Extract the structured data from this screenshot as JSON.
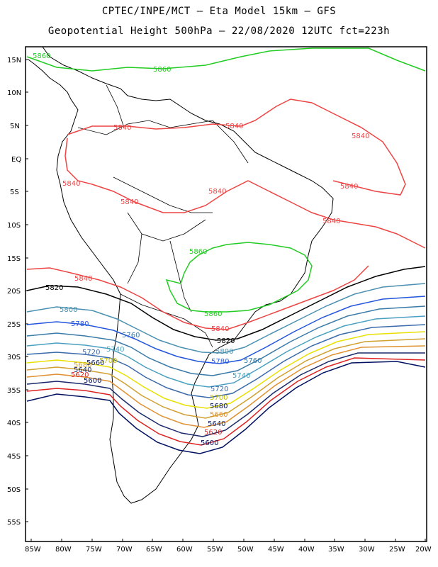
{
  "header": {
    "line1": "CPTEC/INPE/MCT –  Eta Model 15km – GFS",
    "line2": "Geopotential Height 500hPa – 22/08/2020 12UTC fct=223h"
  },
  "axes": {
    "lat_labels": [
      "15N",
      "10N",
      "5N",
      "EQ",
      "5S",
      "10S",
      "15S",
      "20S",
      "25S",
      "30S",
      "35S",
      "40S",
      "45S",
      "50S",
      "55S"
    ],
    "lon_labels": [
      "85W",
      "80W",
      "75W",
      "70W",
      "65W",
      "60W",
      "55W",
      "50W",
      "45W",
      "40W",
      "35W",
      "30W",
      "25W",
      "20W"
    ]
  },
  "contours": [
    {
      "value": "5860",
      "color": "#22cc22"
    },
    {
      "value": "5840",
      "color": "#ee4444"
    },
    {
      "value": "5820",
      "color": "#000000"
    },
    {
      "value": "5800",
      "color": "#4a90b0"
    },
    {
      "value": "5780",
      "color": "#2255dd"
    },
    {
      "value": "5760",
      "color": "#3a7aa8"
    },
    {
      "value": "5740",
      "color": "#4aa0c0"
    },
    {
      "value": "5720",
      "color": "#3a6aaa"
    },
    {
      "value": "5700",
      "color": "#e8e000"
    },
    {
      "value": "5680",
      "color": "#d0a030"
    },
    {
      "value": "5660",
      "color": "#e09030"
    },
    {
      "value": "5640",
      "color": "#1a2a6a"
    },
    {
      "value": "5620",
      "color": "#dd2222"
    },
    {
      "value": "5600",
      "color": "#001060"
    }
  ],
  "labels": {
    "l5860_top": "5860",
    "l5860_top2": "5860",
    "l5840_a": "5840",
    "l5840_b": "5840",
    "l5840_c": "5840",
    "l5840_d": "5840",
    "l5840_e": "5840",
    "l5840_f": "5840",
    "l5840_g": "5840",
    "l5840_h": "5840",
    "l5860_br": "5860",
    "l5860_br2": "5860",
    "l5840_s": "5840",
    "l5840_s2": "5840",
    "l5820_w": "5820",
    "l5820_e": "5820",
    "l5800_w": "5800",
    "l5800_e": "5800",
    "l5780_w": "5780",
    "l5780_e": "5780",
    "l5760_w": "5760",
    "l5760_e": "5760",
    "l5740_w": "5740",
    "l5740_e": "5740",
    "l5720_w": "5720",
    "l5720_e": "5720",
    "l5700_w": "5700",
    "l5700_e": "5700",
    "l5680_w": "5680",
    "l5680_e": "5680",
    "l5660_w": "5660",
    "l5660_e": "5660",
    "l5640_w": "5640",
    "l5640_e": "5640",
    "l5620_w": "5620",
    "l5620_e": "5620",
    "l5600_w": "5600",
    "l5600_e": "5600"
  }
}
